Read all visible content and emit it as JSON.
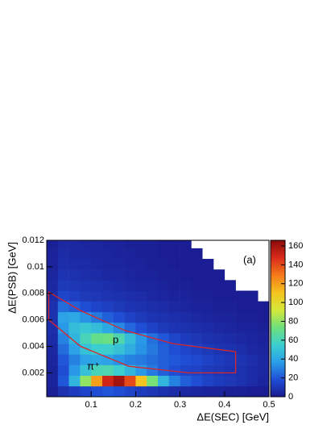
{
  "chart_data": {
    "type": "heatmap",
    "x_label": "ΔE(SEC) [GeV]",
    "y_label": "ΔE(PSB) [GeV]",
    "xlim": [
      0,
      0.5
    ],
    "ylim": [
      0.0002,
      0.012
    ],
    "xticks": [
      0.1,
      0.2,
      0.3,
      0.4,
      0.5
    ],
    "yticks": [
      0.002,
      0.004,
      0.006,
      0.008,
      0.01,
      0.012
    ],
    "zlim": [
      0,
      166
    ],
    "zticks": [
      0,
      20,
      40,
      60,
      80,
      100,
      120,
      140,
      160
    ],
    "colorscale": [
      "#1a1a8f",
      "#1f4fd6",
      "#2aa0e8",
      "#3ccfcf",
      "#6ee07a",
      "#d6e83a",
      "#f5c21e",
      "#f57a1a",
      "#d92a1a",
      "#8b0a0a"
    ],
    "x_bins": [
      0,
      0.025,
      0.05,
      0.075,
      0.1,
      0.125,
      0.15,
      0.175,
      0.2,
      0.225,
      0.25,
      0.275,
      0.3,
      0.325,
      0.35,
      0.375,
      0.4,
      0.425,
      0.45,
      0.475,
      0.5
    ],
    "y_bins": [
      0.0002,
      0.001,
      0.0018,
      0.0026,
      0.0034,
      0.0042,
      0.005,
      0.0058,
      0.0066,
      0.0074,
      0.0082,
      0.009,
      0.0098,
      0.0106,
      0.0114,
      0.012
    ],
    "z": [
      [
        2,
        8,
        12,
        15,
        18,
        20,
        18,
        15,
        12,
        10,
        8,
        6,
        5,
        4,
        3,
        3,
        2,
        2,
        1,
        1
      ],
      [
        3,
        20,
        45,
        80,
        120,
        150,
        160,
        140,
        110,
        75,
        45,
        30,
        22,
        18,
        14,
        12,
        10,
        8,
        6,
        4
      ],
      [
        3,
        18,
        35,
        50,
        60,
        62,
        55,
        45,
        35,
        28,
        22,
        18,
        15,
        14,
        12,
        10,
        9,
        8,
        6,
        5
      ],
      [
        4,
        20,
        30,
        38,
        40,
        38,
        34,
        30,
        28,
        25,
        22,
        20,
        18,
        16,
        14,
        12,
        10,
        9,
        7,
        5
      ],
      [
        5,
        25,
        38,
        50,
        55,
        55,
        50,
        42,
        34,
        28,
        22,
        18,
        15,
        13,
        11,
        9,
        8,
        7,
        5,
        4
      ],
      [
        6,
        30,
        45,
        60,
        70,
        72,
        62,
        48,
        35,
        26,
        20,
        15,
        12,
        10,
        8,
        7,
        6,
        5,
        4,
        3
      ],
      [
        7,
        35,
        48,
        52,
        48,
        40,
        32,
        24,
        18,
        14,
        11,
        9,
        8,
        7,
        6,
        5,
        4,
        3,
        3,
        2
      ],
      [
        8,
        38,
        40,
        34,
        28,
        22,
        18,
        14,
        11,
        9,
        8,
        7,
        6,
        5,
        4,
        3,
        3,
        2,
        2,
        1
      ],
      [
        8,
        25,
        22,
        18,
        15,
        13,
        11,
        9,
        8,
        7,
        6,
        5,
        4,
        3,
        3,
        2,
        2,
        1,
        1,
        1
      ],
      [
        6,
        15,
        13,
        11,
        10,
        9,
        8,
        7,
        6,
        5,
        4,
        3,
        3,
        2,
        2,
        1,
        1,
        1,
        1,
        0
      ],
      [
        5,
        11,
        10,
        9,
        8,
        7,
        6,
        5,
        4,
        4,
        3,
        2,
        2,
        1,
        1,
        1,
        1,
        0,
        0,
        0
      ],
      [
        4,
        9,
        8,
        7,
        6,
        5,
        5,
        4,
        3,
        3,
        2,
        2,
        1,
        1,
        1,
        1,
        0,
        0,
        0,
        0
      ],
      [
        3,
        7,
        6,
        6,
        5,
        4,
        4,
        3,
        3,
        2,
        2,
        1,
        1,
        1,
        1,
        0,
        0,
        0,
        0,
        0
      ],
      [
        3,
        6,
        5,
        5,
        4,
        4,
        3,
        3,
        2,
        2,
        1,
        1,
        1,
        1,
        0,
        0,
        0,
        0,
        0,
        0
      ],
      [
        2,
        5,
        5,
        4,
        4,
        3,
        3,
        2,
        2,
        2,
        1,
        1,
        1,
        0,
        0,
        0,
        0,
        0,
        0,
        0
      ]
    ],
    "cut_color": "#d9262b",
    "cut_polygon": {
      "x": [
        0.0045,
        0.0045,
        0.076,
        0.185,
        0.32,
        0.425,
        0.425,
        0.285,
        0.176,
        0.076
      ],
      "y": [
        0.0081,
        0.006,
        0.004,
        0.0025,
        0.002,
        0.002,
        0.0036,
        0.0042,
        0.0052,
        0.0067
      ]
    },
    "annotations": [
      "p",
      "π⁺",
      "(a)"
    ]
  }
}
